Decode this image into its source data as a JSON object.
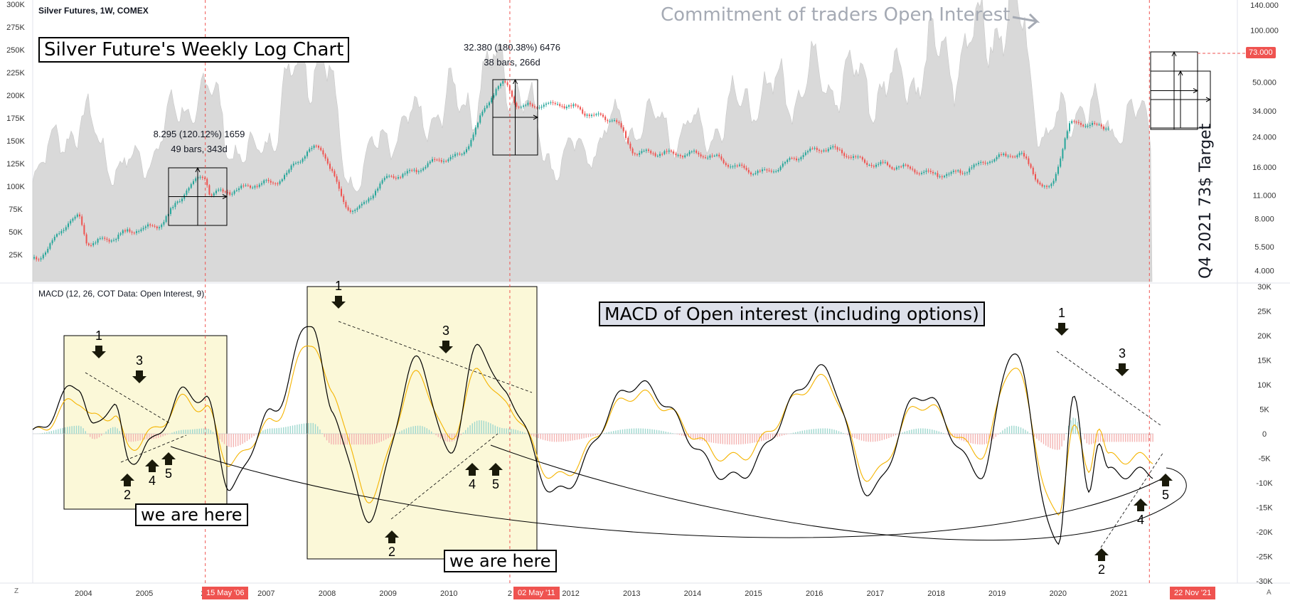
{
  "symbol_label": "Silver Futures, 1W, COMEX",
  "macd_label": "MACD (12, 26, COT Data: Open Interest, 9)",
  "annotations": {
    "main_title": "Silver Future's Weekly Log Chart",
    "cot_title": "Commitment of traders Open Interest",
    "macd_title": "MACD of Open interest (including options)",
    "we_are_here": "we are here",
    "target": "Q4 2021 73$ Target"
  },
  "measures": [
    {
      "line1": "8.295 (120.12%) 1659",
      "line2": "49 bars, 343d"
    },
    {
      "line1": "32.380 (180.38%) 6476",
      "line2": "38 bars, 266d"
    }
  ],
  "marker_tags": {
    "price": "73.000",
    "dates": [
      "15 May '06",
      "02 May '11",
      "22 Nov '21"
    ]
  },
  "wave_labels": [
    "1",
    "2",
    "3",
    "4",
    "5"
  ],
  "corner_labels": {
    "left": "Z",
    "right": "A"
  },
  "colors": {
    "up": "#26a69a",
    "down": "#ef5350",
    "macd_line": "#000000",
    "signal_line": "#f5b400",
    "open_interest": "#d9d9d9",
    "highlight_box": "#fbf8d8",
    "marker": "#ef5350"
  },
  "chart_data": [
    {
      "type": "line",
      "title": "Silver Futures, 1W, COMEX",
      "x": [
        "2003-07",
        "2004-04",
        "2004-06",
        "2005-06",
        "2006-05",
        "2006-06",
        "2007-06",
        "2008-03",
        "2008-10",
        "2009-06",
        "2010-06",
        "2011-04",
        "2011-07",
        "2012-02",
        "2013-01",
        "2013-06",
        "2014-06",
        "2015-06",
        "2016-07",
        "2017-06",
        "2018-06",
        "2019-09",
        "2020-03",
        "2020-08",
        "2021-02"
      ],
      "series": [
        {
          "values": [
            4.7,
            8.1,
            5.8,
            7.1,
            14.0,
            11.2,
            13.0,
            20.5,
            9.0,
            14.2,
            18.2,
            48.6,
            36.0,
            37.1,
            30.5,
            19.5,
            19.0,
            15.0,
            20.5,
            16.5,
            14.5,
            19.0,
            12.0,
            29.0,
            27.5
          ]
        }
      ],
      "y_axis_right": {
        "scale": "log",
        "ticks": [
          "4.000",
          "5.500",
          "8.000",
          "11.000",
          "16.000",
          "24.000",
          "34.000",
          "50.000",
          "100.000",
          "140.000"
        ]
      },
      "y_axis_left": {
        "label": "Open Interest",
        "ticks": [
          "25K",
          "50K",
          "75K",
          "100K",
          "125K",
          "150K",
          "175K",
          "200K",
          "225K",
          "250K",
          "275K",
          "300K"
        ]
      },
      "open_interest": {
        "x": [
          "2003-07",
          "2004-04",
          "2005-01",
          "2006-05",
          "2007-01",
          "2008-03",
          "2008-10",
          "2009-06",
          "2010-06",
          "2011-04",
          "2012-02",
          "2013-06",
          "2014-06",
          "2015-06",
          "2016-07",
          "2017-06",
          "2018-06",
          "2019-09",
          "2020-03",
          "2020-08",
          "2021-02"
        ],
        "values": [
          120000,
          170000,
          120000,
          200000,
          130000,
          250000,
          110000,
          160000,
          190000,
          230000,
          130000,
          170000,
          160000,
          200000,
          220000,
          210000,
          240000,
          290000,
          150000,
          190000,
          170000
        ]
      },
      "target_price": 73.0
    },
    {
      "type": "line",
      "title": "MACD (12, 26, COT Data: Open Interest, 9)",
      "x": [
        "2003-07",
        "2004-04",
        "2004-07",
        "2004-11",
        "2005-02",
        "2005-06",
        "2006-01",
        "2006-05",
        "2006-10",
        "2007-06",
        "2008-02",
        "2008-06",
        "2009-01",
        "2009-11",
        "2010-05",
        "2010-11",
        "2011-04",
        "2012-02",
        "2013-06",
        "2015-01",
        "2016-07",
        "2017-04",
        "2018-02",
        "2019-02",
        "2019-08",
        "2020-05",
        "2020-08",
        "2020-11",
        "2021-01",
        "2021-03"
      ],
      "series": [
        {
          "name": "MACD",
          "values": [
            0,
            10000,
            1000,
            6500,
            -6000,
            -2000,
            8500,
            7000,
            -11000,
            4000,
            23000,
            4000,
            -17000,
            15000,
            -4000,
            18000,
            8000,
            -12000,
            10000,
            -9000,
            13000,
            -12000,
            8000,
            -8000,
            17000,
            -23000,
            8000,
            -12000,
            -1000,
            -8000
          ]
        },
        {
          "name": "Signal",
          "values": [
            0,
            7000,
            3000,
            4000,
            -3000,
            0,
            7000,
            5000,
            -6000,
            2000,
            19000,
            8000,
            -13000,
            12000,
            -1000,
            13000,
            6000,
            -9000,
            8000,
            -5000,
            11000,
            -9000,
            6000,
            -4000,
            14000,
            -17000,
            2000,
            -8000,
            2000,
            -5000
          ]
        }
      ],
      "y_axis_right": {
        "ticks": [
          "30K",
          "25K",
          "20K",
          "15K",
          "10K",
          "5K",
          "0",
          "-5K",
          "-10K",
          "-15K",
          "-20K",
          "-25K",
          "-30K"
        ]
      },
      "annotated_waves": [
        {
          "label": "1",
          "date": "2004-04",
          "value": 10000
        },
        {
          "label": "2",
          "date": "2004-11",
          "value": -6000
        },
        {
          "label": "3",
          "date": "2004-11",
          "value": 6500
        },
        {
          "label": "4",
          "date": "2005-02",
          "value": -4500
        },
        {
          "label": "5",
          "date": "2005-06",
          "value": -3000
        },
        {
          "label": "1",
          "date": "2008-02",
          "value": 23000
        },
        {
          "label": "2",
          "date": "2009-01",
          "value": -17000
        },
        {
          "label": "3",
          "date": "2009-11",
          "value": 15000
        },
        {
          "label": "4",
          "date": "2010-05",
          "value": -4000
        },
        {
          "label": "5",
          "date": "2010-11",
          "value": -2000
        },
        {
          "label": "1",
          "date": "2019-08",
          "value": 17000
        },
        {
          "label": "2",
          "date": "2020-05",
          "value": -23000
        },
        {
          "label": "3",
          "date": "2020-08",
          "value": 8000
        },
        {
          "label": "4",
          "date": "2020-11",
          "value": -12000
        },
        {
          "label": "5",
          "date": "2021-03",
          "value": -8000
        }
      ]
    }
  ],
  "x_axis_ticks": [
    "2004",
    "2005",
    "20",
    "2007",
    "2008",
    "2009",
    "2010",
    "2",
    "2012",
    "2013",
    "2014",
    "2015",
    "2016",
    "2017",
    "2018",
    "2019",
    "2020",
    "2021"
  ]
}
